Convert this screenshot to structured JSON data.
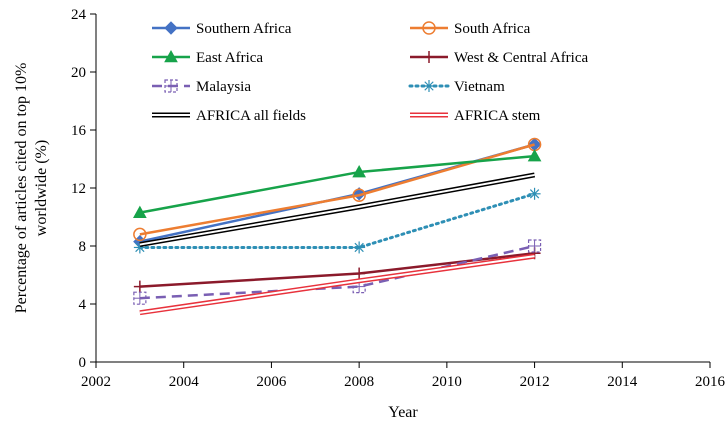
{
  "chart_data": {
    "type": "line",
    "title": "",
    "xlabel": "Year",
    "ylabel_line1": "Percentage of articles cited on top 10%",
    "ylabel_line2": "worldwide (%)",
    "xlim": [
      2002,
      2016
    ],
    "ylim": [
      0,
      24
    ],
    "xticks": [
      2002,
      2004,
      2006,
      2008,
      2010,
      2012,
      2014,
      2016
    ],
    "yticks": [
      0,
      4,
      8,
      12,
      16,
      20,
      24
    ],
    "grid": false,
    "legend_position": "top",
    "x": [
      2003,
      2008,
      2012
    ],
    "series": [
      {
        "name": "Southern Africa",
        "values": [
          8.3,
          11.6,
          15.0
        ],
        "color": "#4472c4",
        "marker": "diamond",
        "dash": "solid"
      },
      {
        "name": "South Africa",
        "values": [
          8.8,
          11.5,
          15.0
        ],
        "color": "#ed7d31",
        "marker": "circle-open",
        "dash": "solid"
      },
      {
        "name": "East Africa",
        "values": [
          10.3,
          13.1,
          14.2
        ],
        "color": "#17a34a",
        "marker": "triangle",
        "dash": "solid"
      },
      {
        "name": "West & Central Africa",
        "values": [
          5.2,
          6.1,
          7.5
        ],
        "color": "#8b1a2b",
        "marker": "plus",
        "dash": "solid"
      },
      {
        "name": "Malaysia",
        "values": [
          4.4,
          5.2,
          8.0
        ],
        "color": "#7a5fb3",
        "marker": "square-cross",
        "dash": "dashed"
      },
      {
        "name": "Vietnam",
        "values": [
          7.9,
          7.9,
          11.6
        ],
        "color": "#2e8fb5",
        "marker": "asterisk",
        "dash": "dotted"
      },
      {
        "name": "AFRICA all fields",
        "values": [
          8.1,
          10.7,
          12.9
        ],
        "color": "#000000",
        "marker": "none",
        "dash": "double"
      },
      {
        "name": "AFRICA stem",
        "values": [
          3.4,
          5.6,
          7.3
        ],
        "color": "#e8323c",
        "marker": "none",
        "dash": "double"
      }
    ]
  }
}
